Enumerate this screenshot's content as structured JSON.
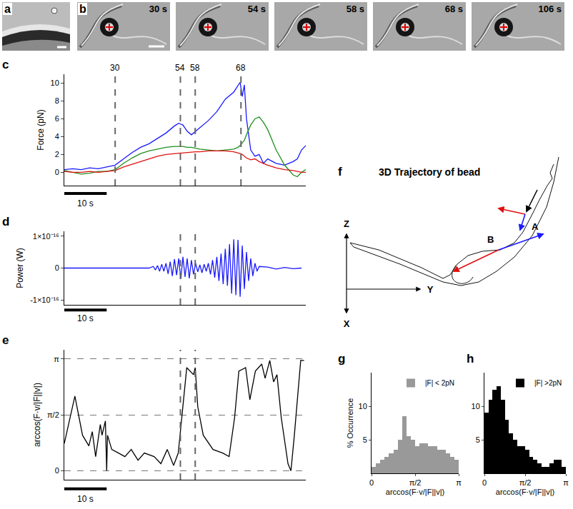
{
  "images": {
    "a": {
      "panel": "a"
    },
    "b": {
      "panel": "b",
      "frames": [
        "30 s",
        "54 s",
        "58 s",
        "68 s",
        "106 s"
      ]
    }
  },
  "chart_data": [
    {
      "panel": "c",
      "type": "line",
      "y_label": "Force (pN)",
      "xlim": [
        0,
        57
      ],
      "ylim": [
        -1.5,
        11
      ],
      "yticks": [
        0,
        2,
        4,
        6,
        8,
        10
      ],
      "tick_labels": "y",
      "grid": false,
      "x": [
        0,
        2,
        4,
        6,
        8,
        10,
        12,
        14,
        16,
        18,
        20,
        22,
        24,
        26,
        27,
        28,
        29,
        30,
        31,
        32,
        34,
        36,
        38,
        40,
        41,
        41.5,
        42,
        42.5,
        43,
        44,
        45,
        46,
        47,
        48,
        50,
        52,
        54,
        55,
        56,
        57
      ],
      "series": [
        {
          "color": "#1a1aff",
          "values": [
            0.3,
            0.4,
            0.3,
            0.5,
            0.4,
            0.6,
            0.8,
            1.5,
            2.2,
            2.8,
            3.2,
            3.8,
            4.4,
            5.2,
            5.5,
            5.3,
            4.6,
            4.2,
            4.6,
            5.0,
            5.8,
            6.8,
            8.2,
            9.0,
            9.8,
            10.1,
            8.5,
            9.8,
            6.0,
            2.5,
            1.8,
            2.0,
            1.0,
            1.5,
            1.0,
            0.8,
            1.2,
            1.5,
            2.5,
            3.0
          ]
        },
        {
          "color": "#1f8f1f",
          "values": [
            0.2,
            0,
            -0.2,
            -0.1,
            0.1,
            0.1,
            0.3,
            1.0,
            1.6,
            2.1,
            2.4,
            2.6,
            2.8,
            2.9,
            2.9,
            2.9,
            2.8,
            2.8,
            2.7,
            2.6,
            2.5,
            2.4,
            2.5,
            2.6,
            2.8,
            3.0,
            3.3,
            3.6,
            4.2,
            5.3,
            6.0,
            6.2,
            5.6,
            4.8,
            2.5,
            0.8,
            -0.3,
            -0.5,
            0,
            0.3
          ]
        },
        {
          "color": "#e01010",
          "values": [
            0.1,
            0,
            0,
            0.1,
            0,
            0.1,
            0.2,
            0.6,
            0.9,
            1.2,
            1.5,
            1.8,
            2.0,
            2.1,
            2.1,
            2.2,
            2.2,
            2.3,
            2.3,
            2.3,
            2.4,
            2.4,
            2.4,
            2.3,
            2.2,
            2.1,
            2.0,
            1.8,
            1.6,
            1.4,
            1.5,
            1.2,
            1.0,
            0.8,
            0.5,
            0.3,
            0.2,
            0.1,
            0,
            0
          ]
        }
      ],
      "vlines": [
        {
          "value": 12,
          "label": "30"
        },
        {
          "value": 27.4,
          "label": "54"
        },
        {
          "value": 30.9,
          "label": "58"
        },
        {
          "value": 41.7,
          "label": "68"
        }
      ],
      "scale_bar": {
        "value": 10,
        "label": "10 s"
      }
    },
    {
      "panel": "d",
      "type": "line",
      "y_label": "Power (W)",
      "xlim": [
        0,
        57
      ],
      "ylim": [
        -1.15e-16,
        1.15e-16
      ],
      "yticks": [
        {
          "value": -1e-16,
          "label": "-1×10⁻¹⁶"
        },
        0,
        {
          "value": 1e-16,
          "label": "1×10⁻¹⁶"
        }
      ],
      "tick_labels": "y",
      "grid": false,
      "color": "#1a1aff",
      "x": [
        0,
        2,
        4,
        6,
        8,
        10,
        12,
        14,
        16,
        18,
        20,
        21,
        21.5,
        22,
        22.5,
        23,
        23.5,
        24,
        24.5,
        25,
        25.5,
        26,
        26.5,
        27,
        27.5,
        28,
        28.5,
        29,
        29.5,
        30,
        30.5,
        31,
        31.5,
        32,
        32.5,
        33,
        33.5,
        34,
        34.5,
        35,
        35.5,
        36,
        36.5,
        37,
        37.5,
        38,
        38.5,
        39,
        39.5,
        40,
        40.5,
        41,
        41.5,
        42,
        42.5,
        43,
        43.5,
        44,
        44.5,
        45,
        45.5,
        46,
        48,
        50,
        52,
        54,
        56
      ],
      "values": [
        0,
        0,
        0,
        0,
        0,
        0,
        0,
        0,
        0,
        0,
        0,
        5e-18,
        -6e-18,
        8e-18,
        -1e-17,
        1.2e-17,
        -1e-17,
        1.5e-17,
        -1.8e-17,
        2e-17,
        -2.5e-17,
        2.8e-17,
        -2.2e-17,
        3e-17,
        -3.4e-17,
        3.5e-17,
        -2.8e-17,
        3e-17,
        -3.2e-17,
        2.5e-17,
        -2e-17,
        1.5e-17,
        -1.2e-17,
        1e-17,
        -1.5e-17,
        1.2e-17,
        -1e-17,
        1.5e-17,
        -2e-17,
        2.5e-17,
        -3e-17,
        3.5e-17,
        -4e-17,
        4.5e-17,
        -5e-17,
        6e-17,
        -5.5e-17,
        7.5e-17,
        -8e-17,
        9e-17,
        -8.5e-17,
        8.8e-17,
        -9e-17,
        7e-17,
        -6.5e-17,
        5e-17,
        -4e-17,
        3e-17,
        -2.5e-17,
        1.5e-17,
        -1e-17,
        5e-18,
        3e-18,
        -3e-18,
        2e-18,
        -2e-18,
        0
      ],
      "vlines": [
        27.4,
        30.9
      ],
      "scale_bar": {
        "value": 10,
        "label": "10 s"
      }
    },
    {
      "panel": "e",
      "type": "line",
      "y_label": "arccos(F·v/|F||v|)",
      "xlim": [
        0,
        57
      ],
      "ylim": [
        -0.25,
        3.4
      ],
      "yticks": [
        0,
        {
          "value": 1.5708,
          "label": "π/2"
        },
        {
          "value": 3.1416,
          "label": "π"
        }
      ],
      "tick_labels": "y",
      "grid": true,
      "color": "#000000",
      "x": [
        0,
        2.5,
        4.3,
        5.8,
        6.6,
        7.4,
        8.5,
        8.9,
        9.7,
        10,
        10.2,
        11.2,
        12.8,
        14.3,
        15.8,
        17.4,
        18.9,
        21.2,
        22.8,
        24.3,
        25.8,
        26.9,
        28.9,
        30.5,
        30.9,
        31.5,
        32.8,
        35.1,
        37.4,
        38.9,
        40.2,
        41.2,
        42.8,
        43.8,
        45.1,
        46.6,
        47.4,
        48.5,
        49.4,
        50.2,
        51.2,
        52.8,
        53.5,
        54.3,
        55.8,
        56.6
      ],
      "values": [
        0.77,
        2.1,
        1.0,
        0.7,
        1.1,
        0.4,
        1.3,
        1.0,
        1.4,
        0.0,
        1.0,
        0.6,
        0.5,
        0.4,
        0.6,
        0.3,
        0.5,
        0.4,
        0.2,
        0.6,
        0.15,
        0.5,
        2.9,
        2.7,
        2.9,
        1.8,
        1.0,
        0.6,
        0.5,
        0.4,
        1.5,
        2.8,
        2.9,
        2.0,
        2.8,
        3.0,
        2.6,
        3.1,
        2.5,
        2.7,
        1.5,
        0.2,
        0.0,
        1.0,
        3.1,
        3.1
      ],
      "vlines": [
        27.4,
        30.9
      ],
      "scale_bar": {
        "value": 10,
        "label": "10 s"
      }
    },
    {
      "panel": "g",
      "type": "histogram",
      "name": "|F| < 2pN",
      "color": "#999999",
      "legend": "upper right",
      "x_label": "arccos(F·v/|F||v|)",
      "y_label": "% Occurrence",
      "bins": [
        0,
        0.1571,
        0.3142,
        0.4712,
        0.6283,
        0.7854,
        0.9425,
        1.0996,
        1.2566,
        1.4137,
        1.5708,
        1.7279,
        1.885,
        2.042,
        2.1991,
        2.3562,
        2.5133,
        2.6704,
        2.8274,
        2.9845,
        3.1416
      ],
      "counts": [
        1,
        1.5,
        2,
        2.5,
        3,
        3.5,
        5,
        8.5,
        5.5,
        5,
        4,
        4.5,
        4.5,
        4,
        4,
        3.5,
        3.5,
        3,
        2.5,
        2
      ],
      "xlim": [
        0,
        3.1416
      ],
      "xticks": [
        0,
        {
          "value": 1.5708,
          "label": "π/2"
        },
        {
          "value": 3.1416,
          "label": "π"
        }
      ],
      "ylim": [
        0,
        15
      ],
      "yticks": [
        5,
        10
      ]
    },
    {
      "panel": "h",
      "type": "histogram",
      "name": "|F| >2pN",
      "color": "#000000",
      "legend": "upper right",
      "x_label": "arccos(F·v/|F||v|)",
      "bins": [
        0,
        0.1571,
        0.3142,
        0.4712,
        0.6283,
        0.7854,
        0.9425,
        1.0996,
        1.2566,
        1.4137,
        1.5708,
        1.7279,
        1.885,
        2.042,
        2.1991,
        2.3562,
        2.5133,
        2.6704,
        2.8274,
        2.9845,
        3.1416
      ],
      "counts": [
        9,
        11,
        12.5,
        13,
        11,
        8,
        6,
        5,
        4,
        4,
        3.5,
        2.5,
        2,
        1.5,
        1,
        1,
        1.5,
        2,
        2,
        1
      ],
      "xlim": [
        0,
        3.1416
      ],
      "xticks": [
        0,
        {
          "value": 1.5708,
          "label": "π/2"
        },
        {
          "value": 3.1416,
          "label": "π"
        }
      ],
      "ylim": [
        0,
        15
      ],
      "yticks": [
        5,
        10
      ]
    }
  ],
  "diagram": {
    "panel": "f",
    "title": "3D Trajectory of bead",
    "axis_labels": {
      "z": "Z",
      "y": "Y",
      "x": "X"
    },
    "points": [
      "A",
      "B"
    ]
  }
}
